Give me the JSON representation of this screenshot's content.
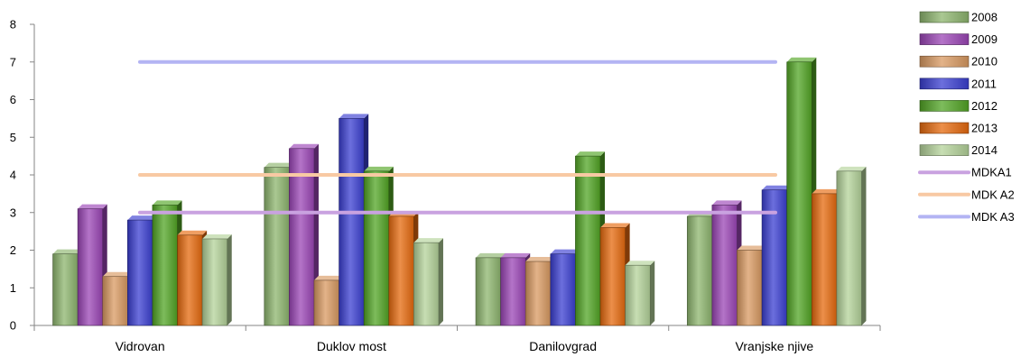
{
  "chart_data": {
    "type": "bar",
    "categories": [
      "Vidrovan",
      "Duklov most",
      "Danilovgrad",
      "Vranjske njive"
    ],
    "ylim": [
      0,
      8
    ],
    "yticks": [
      0,
      1,
      2,
      3,
      4,
      5,
      6,
      7,
      8
    ],
    "grid": false,
    "legend_position": "right",
    "series": [
      {
        "name": "2008",
        "color": "#8db56e",
        "values": [
          1.9,
          4.2,
          1.8,
          2.9
        ]
      },
      {
        "name": "2009",
        "color": "#9b45b6",
        "values": [
          3.1,
          4.7,
          1.8,
          3.2
        ]
      },
      {
        "name": "2010",
        "color": "#d99a62",
        "values": [
          1.3,
          1.2,
          1.7,
          2.0
        ]
      },
      {
        "name": "2011",
        "color": "#3b3fd1",
        "values": [
          2.8,
          5.5,
          1.9,
          3.6
        ]
      },
      {
        "name": "2012",
        "color": "#52a525",
        "values": [
          3.2,
          4.1,
          4.5,
          7.0
        ]
      },
      {
        "name": "2013",
        "color": "#e66a0e",
        "values": [
          2.4,
          2.9,
          2.6,
          3.5
        ]
      },
      {
        "name": "2014",
        "color": "#b4d39a",
        "values": [
          2.3,
          2.2,
          1.6,
          4.1
        ]
      }
    ],
    "lines": [
      {
        "name": "MDKA1",
        "color": "#c9a2e0",
        "value": 3
      },
      {
        "name": "MDK A2",
        "color": "#f8c9a3",
        "value": 4
      },
      {
        "name": "MDK A3",
        "color": "#b3b4f3",
        "value": 7
      }
    ]
  }
}
